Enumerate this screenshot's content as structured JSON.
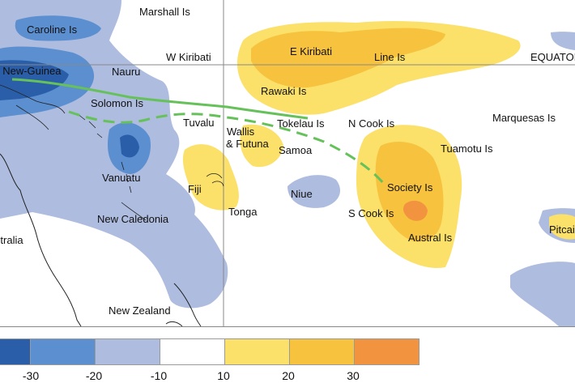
{
  "map": {
    "labels": {
      "marshall": "Marshall Is",
      "caroline": "Caroline Is",
      "w_kiribati": "W Kiribati",
      "e_kiribati": "E Kiribati",
      "line": "Line Is",
      "equator": "EQUATOR",
      "png": "Papua New-Guinea",
      "nauru": "Nauru",
      "rawaki": "Rawaki Is",
      "solomon": "Solomon Is",
      "tuvalu": "Tuvalu",
      "wallis": "Wallis",
      "futuna": "& Futuna",
      "tokelau": "Tokelau Is",
      "ncook": "N Cook Is",
      "marquesas": "Marquesas Is",
      "samoa": "Samoa",
      "tuamotu": "Tuamotu Is",
      "vanuatu": "Vanuatu",
      "fiji": "Fiji",
      "niue": "Niue",
      "society": "Society Is",
      "tonga": "Tonga",
      "scook": "S Cook Is",
      "newcaledonia": "New Caledonia",
      "australia": "Australia",
      "austral": "Austral Is",
      "pitcairn": "Pitcairn",
      "newzealand": "New Zealand"
    },
    "colors": {
      "dark_blue": "#2b5ea8",
      "mid_blue": "#5b8fd0",
      "light_blue": "#aebcdf",
      "white": "#ffffff",
      "yellow": "#fbe06a",
      "gold": "#f7c23e",
      "orange": "#f29340",
      "spcz_line": "#66c15a"
    }
  },
  "legend": {
    "ticks": [
      "-30",
      "-20",
      "-10",
      "10",
      "20",
      "30"
    ],
    "swatch_colors": [
      "#2b5ea8",
      "#5b8fd0",
      "#aebcdf",
      "#ffffff",
      "#fbe06a",
      "#f7c23e",
      "#f29340"
    ]
  }
}
